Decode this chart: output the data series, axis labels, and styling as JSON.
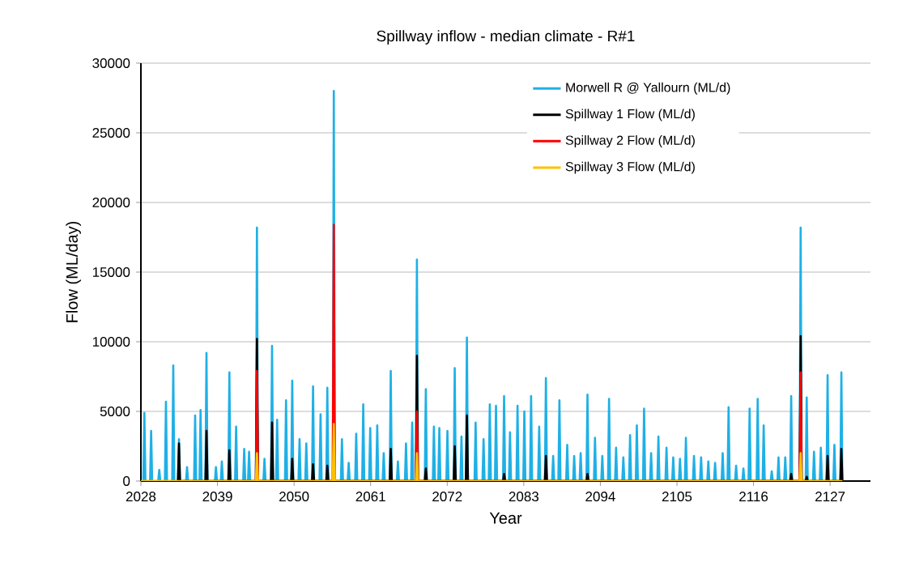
{
  "chart_data": {
    "type": "line",
    "title": "Spillway inflow - median climate - R#1",
    "xlabel": "Year",
    "ylabel": "Flow (ML/day)",
    "xlim": [
      2028,
      2132.8
    ],
    "ylim": [
      0,
      30000
    ],
    "xticks": [
      2028,
      2039,
      2050,
      2061,
      2072,
      2083,
      2094,
      2105,
      2116,
      2127
    ],
    "yticks": [
      0,
      5000,
      10000,
      15000,
      20000,
      25000,
      30000
    ],
    "grid": "y",
    "legend": "top right",
    "marker": "none",
    "line_style": "solid",
    "series": [
      {
        "name": "Morwell R @ Yallourn (ML/d)",
        "color": "#1fb0e6",
        "x": [
          2028.35,
          2028.5,
          2028.65,
          2029.32,
          2029.47,
          2029.62,
          2030.49,
          2030.64,
          2030.79,
          2031.45,
          2031.6,
          2031.75,
          2032.5,
          2032.65,
          2032.8,
          2033.32,
          2033.47,
          2033.62,
          2034.48,
          2034.63,
          2034.78,
          2035.64,
          2035.79,
          2035.94,
          2036.42,
          2036.57,
          2036.72,
          2037.27,
          2037.42,
          2037.57,
          2038.63,
          2038.78,
          2038.93,
          2039.48,
          2039.63,
          2039.78,
          2040.56,
          2040.71,
          2040.86,
          2041.53,
          2041.68,
          2041.83,
          2042.69,
          2042.84,
          2042.99,
          2043.39,
          2043.54,
          2043.69,
          2044.52,
          2044.67,
          2044.82,
          2045.6,
          2045.75,
          2045.9,
          2046.69,
          2046.84,
          2046.99,
          2047.42,
          2047.57,
          2047.72,
          2048.7,
          2048.85,
          2049.0,
          2049.59,
          2049.74,
          2049.89,
          2050.64,
          2050.79,
          2050.94,
          2051.61,
          2051.76,
          2051.91,
          2052.58,
          2052.73,
          2052.88,
          2053.66,
          2053.81,
          2053.96,
          2054.63,
          2054.78,
          2054.93,
          2055.56,
          2055.71,
          2055.86,
          2056.73,
          2056.88,
          2057.03,
          2057.7,
          2057.85,
          2058.0,
          2058.78,
          2058.93,
          2059.08,
          2059.79,
          2059.94,
          2060.09,
          2060.79,
          2060.94,
          2061.09,
          2061.8,
          2061.95,
          2062.1,
          2062.73,
          2062.88,
          2063.03,
          2063.74,
          2063.89,
          2064.04,
          2064.77,
          2064.92,
          2065.07,
          2065.93,
          2066.08,
          2066.23,
          2066.82,
          2066.97,
          2067.12,
          2067.5,
          2067.65,
          2067.8,
          2068.78,
          2068.93,
          2069.08,
          2069.94,
          2070.09,
          2070.24,
          2070.72,
          2070.87,
          2071.02,
          2071.88,
          2072.03,
          2072.18,
          2072.93,
          2073.08,
          2073.23,
          2073.9,
          2074.05,
          2074.2,
          2074.68,
          2074.83,
          2074.98,
          2075.93,
          2076.08,
          2076.23,
          2077.07,
          2077.22,
          2077.37,
          2077.97,
          2078.12,
          2078.27,
          2078.86,
          2079.01,
          2079.16,
          2080.02,
          2080.17,
          2080.32,
          2080.87,
          2081.02,
          2081.17,
          2081.95,
          2082.1,
          2082.25,
          2082.93,
          2083.08,
          2083.23,
          2083.9,
          2084.05,
          2084.2,
          2085.06,
          2085.21,
          2085.36,
          2086.03,
          2086.18,
          2086.33,
          2087.07,
          2087.22,
          2087.37,
          2087.97,
          2088.12,
          2088.27,
          2089.09,
          2089.24,
          2089.39,
          2090.09,
          2090.24,
          2090.39,
          2091.02,
          2091.17,
          2091.32,
          2092.0,
          2092.15,
          2092.3,
          2093.08,
          2093.23,
          2093.38,
          2094.13,
          2094.28,
          2094.43,
          2095.1,
          2095.25,
          2095.4,
          2096.11,
          2096.26,
          2096.41,
          2097.15,
          2097.3,
          2097.45,
          2098.12,
          2098.27,
          2098.42,
          2099.09,
          2099.24,
          2099.39,
          2100.13,
          2100.28,
          2100.43,
          2101.14,
          2101.29,
          2101.44,
          2102.19,
          2102.34,
          2102.49,
          2103.35,
          2103.5,
          2103.65,
          2104.32,
          2104.47,
          2104.62,
          2105.29,
          2105.44,
          2105.59,
          2106.14,
          2106.29,
          2106.44,
          2107.3,
          2107.45,
          2107.6,
          2108.32,
          2108.47,
          2108.62,
          2109.36,
          2109.51,
          2109.66,
          2110.33,
          2110.48,
          2110.63,
          2111.42,
          2111.57,
          2111.72,
          2112.27,
          2112.42,
          2112.57,
          2113.35,
          2113.5,
          2113.65,
          2114.4,
          2114.55,
          2114.7,
          2115.29,
          2115.44,
          2115.59,
          2116.45,
          2116.6,
          2116.75,
          2117.31,
          2117.46,
          2117.61,
          2118.47,
          2118.62,
          2118.77,
          2119.44,
          2119.59,
          2119.74,
          2120.41,
          2120.56,
          2120.71,
          2121.26,
          2121.41,
          2121.56,
          2122.62,
          2122.77,
          2122.92,
          2123.49,
          2123.64,
          2123.79,
          2124.54,
          2124.69,
          2124.84,
          2125.52,
          2125.67,
          2125.82,
          2126.49,
          2126.64,
          2126.79,
          2127.47,
          2127.62,
          2127.77,
          2128.47,
          2128.62,
          2128.77
        ],
        "values": [
          0,
          4900,
          0,
          0,
          3600,
          0,
          0,
          800,
          0,
          0,
          5700,
          0,
          0,
          8300,
          0,
          0,
          3000,
          0,
          0,
          1000,
          0,
          0,
          4700,
          0,
          0,
          5100,
          0,
          0,
          9200,
          0,
          0,
          1000,
          0,
          0,
          1400,
          0,
          0,
          7800,
          0,
          0,
          3900,
          0,
          0,
          2300,
          0,
          0,
          2100,
          0,
          0,
          18200,
          0,
          0,
          1600,
          0,
          0,
          9700,
          0,
          0,
          4400,
          0,
          0,
          5800,
          0,
          0,
          7200,
          0,
          0,
          3000,
          0,
          0,
          2700,
          0,
          0,
          6800,
          0,
          0,
          4800,
          0,
          0,
          6700,
          0,
          0,
          28000,
          0,
          0,
          3000,
          0,
          0,
          1300,
          0,
          0,
          3400,
          0,
          0,
          5500,
          0,
          0,
          3800,
          0,
          0,
          4000,
          0,
          0,
          2000,
          0,
          0,
          7900,
          0,
          0,
          1400,
          0,
          0,
          2700,
          0,
          0,
          4200,
          0,
          0,
          15900,
          0,
          0,
          6600,
          0,
          0,
          3900,
          0,
          0,
          3800,
          0,
          0,
          3600,
          0,
          0,
          8100,
          0,
          0,
          3200,
          0,
          0,
          10300,
          0,
          0,
          4200,
          0,
          0,
          3000,
          0,
          0,
          5500,
          0,
          0,
          5400,
          0,
          0,
          6100,
          0,
          0,
          3500,
          0,
          0,
          5400,
          0,
          0,
          5000,
          0,
          0,
          6100,
          0,
          0,
          3900,
          0,
          0,
          7400,
          0,
          0,
          1800,
          0,
          0,
          5800,
          0,
          0,
          2600,
          0,
          0,
          1800,
          0,
          0,
          2000,
          0,
          0,
          6200,
          0,
          0,
          3100,
          0,
          0,
          1800,
          0,
          0,
          5900,
          0,
          0,
          2400,
          0,
          0,
          1700,
          0,
          0,
          3300,
          0,
          0,
          4000,
          0,
          0,
          5200,
          0,
          0,
          2000,
          0,
          0,
          3200,
          0,
          0,
          2400,
          0,
          0,
          1700,
          0,
          0,
          1600,
          0,
          0,
          3100,
          0,
          0,
          1800,
          0,
          0,
          1700,
          0,
          0,
          1400,
          0,
          0,
          1300,
          0,
          0,
          2000,
          0,
          0,
          5300,
          0,
          0,
          1100,
          0,
          0,
          900,
          0,
          0,
          5200,
          0,
          0,
          5900,
          0,
          0,
          4000,
          0,
          0,
          700,
          0,
          0,
          1700,
          0,
          0,
          1700,
          0,
          0,
          6100,
          0,
          0,
          18200,
          0,
          0,
          6000,
          0,
          0,
          2100,
          0,
          0,
          2400,
          0,
          0,
          7600,
          0,
          0,
          2600,
          0,
          0,
          7800,
          0
        ]
      },
      {
        "name": "Spillway 1 Flow (ML/d)",
        "color": "#000000",
        "x": [
          2033.32,
          2033.47,
          2033.62,
          2037.27,
          2037.42,
          2037.57,
          2040.56,
          2040.71,
          2040.86,
          2044.52,
          2044.67,
          2044.82,
          2046.69,
          2046.84,
          2046.99,
          2049.59,
          2049.74,
          2049.89,
          2052.58,
          2052.73,
          2052.88,
          2054.63,
          2054.78,
          2054.93,
          2063.74,
          2063.89,
          2064.04,
          2067.5,
          2067.65,
          2067.8,
          2068.78,
          2068.93,
          2069.08,
          2072.93,
          2073.08,
          2073.23,
          2074.68,
          2074.83,
          2074.98,
          2080.02,
          2080.17,
          2080.32,
          2086.03,
          2086.18,
          2086.33,
          2092.0,
          2092.15,
          2092.3,
          2121.26,
          2121.41,
          2121.56,
          2122.62,
          2122.77,
          2122.92,
          2123.49,
          2123.64,
          2123.79,
          2126.49,
          2126.64,
          2126.79,
          2128.47,
          2128.62,
          2128.77
        ],
        "values": [
          0,
          2700,
          0,
          0,
          3600,
          0,
          0,
          2200,
          0,
          0,
          10200,
          0,
          0,
          4200,
          0,
          0,
          1600,
          0,
          0,
          1200,
          0,
          0,
          1100,
          0,
          0,
          2300,
          0,
          0,
          9000,
          0,
          0,
          900,
          0,
          0,
          2500,
          0,
          0,
          4700,
          0,
          0,
          500,
          0,
          0,
          1800,
          0,
          0,
          500,
          0,
          0,
          500,
          0,
          0,
          10400,
          0,
          0,
          300,
          0,
          0,
          1800,
          0,
          0,
          2300,
          0
        ]
      },
      {
        "name": "Spillway 2 Flow (ML/d)",
        "color": "#ff0000",
        "x": [
          2044.52,
          2044.67,
          2044.82,
          2055.56,
          2055.71,
          2055.86,
          2067.5,
          2067.65,
          2067.8,
          2122.62,
          2122.77,
          2122.92
        ],
        "values": [
          0,
          7900,
          0,
          0,
          18400,
          0,
          0,
          5000,
          0,
          0,
          7800,
          0
        ]
      },
      {
        "name": "Spillway 3 Flow (ML/d)",
        "color": "#ffc000",
        "x": [
          2028,
          2044.52,
          2044.67,
          2044.82,
          2055.56,
          2055.71,
          2055.86,
          2067.5,
          2067.65,
          2067.8,
          2122.62,
          2122.77,
          2122.92,
          2128.77
        ],
        "values": [
          0,
          0,
          2000,
          0,
          0,
          4100,
          0,
          0,
          2000,
          0,
          0,
          2000,
          0,
          0
        ]
      }
    ]
  }
}
